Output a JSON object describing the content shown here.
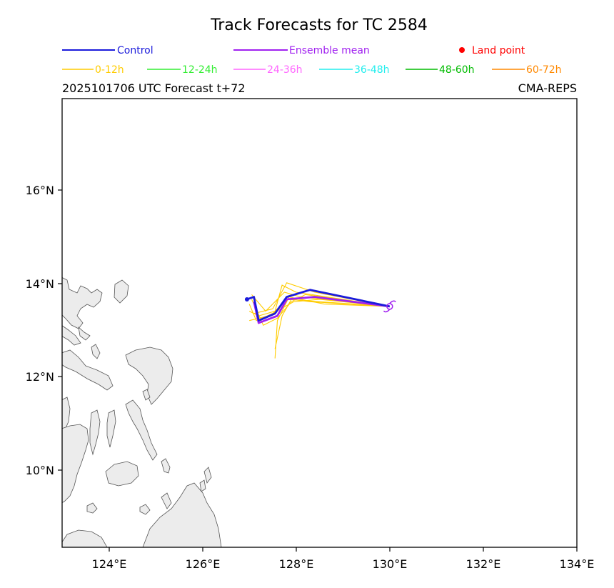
{
  "title": "Track Forecasts for TC 2584",
  "legend_row1": [
    {
      "label": "Control",
      "color": "#1a1adb"
    },
    {
      "label": "Ensemble mean",
      "color": "#a020f0"
    },
    {
      "label": "Land point",
      "color": "#ff0000"
    }
  ],
  "legend_row2": [
    {
      "label": "0-12h",
      "color": "#ffcc00"
    },
    {
      "label": "12-24h",
      "color": "#33ee33"
    },
    {
      "label": "24-36h",
      "color": "#ff66ff"
    },
    {
      "label": "36-48h",
      "color": "#22eeee"
    },
    {
      "label": "48-60h",
      "color": "#00bb00"
    },
    {
      "label": "60-72h",
      "color": "#ff8800"
    }
  ],
  "subtitle_left": "2025101706 UTC Forecast t+72",
  "subtitle_right": "CMA-REPS",
  "map": {
    "lon_range": [
      123,
      134
    ],
    "lat_range": [
      8.4,
      17.9
    ],
    "lon_ticks": [
      "124°E",
      "126°E",
      "128°E",
      "130°E",
      "132°E",
      "134°E"
    ],
    "lat_ticks": [
      "10°N",
      "12°N",
      "14°N",
      "16°N"
    ],
    "land_color": "#ececec"
  },
  "tracks": {
    "control": [
      [
        130.0,
        13.5
      ],
      [
        128.3,
        13.85
      ],
      [
        127.8,
        13.7
      ],
      [
        127.55,
        13.35
      ],
      [
        127.2,
        13.2
      ],
      [
        127.1,
        13.7
      ],
      [
        126.95,
        13.65
      ]
    ],
    "ensemble_mean": [
      [
        130.0,
        13.5
      ],
      [
        128.4,
        13.7
      ],
      [
        127.8,
        13.65
      ],
      [
        127.6,
        13.3
      ],
      [
        127.2,
        13.15
      ],
      [
        127.1,
        13.6
      ]
    ],
    "members": [
      [
        [
          130.0,
          13.5
        ],
        [
          128.5,
          13.6
        ],
        [
          127.8,
          13.65
        ],
        [
          127.5,
          13.35
        ],
        [
          127.15,
          13.2
        ],
        [
          127.0,
          13.55
        ]
      ],
      [
        [
          130.0,
          13.5
        ],
        [
          128.2,
          13.75
        ],
        [
          127.9,
          13.6
        ],
        [
          127.6,
          13.25
        ],
        [
          127.3,
          13.1
        ],
        [
          127.05,
          13.65
        ]
      ],
      [
        [
          130.0,
          13.5
        ],
        [
          128.0,
          13.8
        ],
        [
          127.7,
          13.95
        ],
        [
          127.55,
          13.4
        ],
        [
          127.2,
          13.3
        ],
        [
          127.0,
          13.4
        ]
      ],
      [
        [
          130.0,
          13.5
        ],
        [
          128.6,
          13.55
        ],
        [
          127.85,
          13.7
        ],
        [
          127.6,
          13.2
        ],
        [
          127.55,
          12.4
        ]
      ],
      [
        [
          130.0,
          13.5
        ],
        [
          128.3,
          13.6
        ],
        [
          127.9,
          13.65
        ],
        [
          127.7,
          13.3
        ],
        [
          127.55,
          12.6
        ]
      ],
      [
        [
          130.0,
          13.5
        ],
        [
          128.4,
          13.8
        ],
        [
          127.8,
          14.0
        ],
        [
          127.5,
          13.45
        ],
        [
          127.1,
          13.35
        ]
      ],
      [
        [
          130.0,
          13.5
        ],
        [
          128.5,
          13.65
        ],
        [
          127.95,
          13.6
        ],
        [
          127.4,
          13.3
        ],
        [
          127.0,
          13.2
        ]
      ],
      [
        [
          130.0,
          13.5
        ],
        [
          128.1,
          13.7
        ],
        [
          127.75,
          13.8
        ],
        [
          127.35,
          13.4
        ],
        [
          127.05,
          13.75
        ]
      ]
    ]
  }
}
